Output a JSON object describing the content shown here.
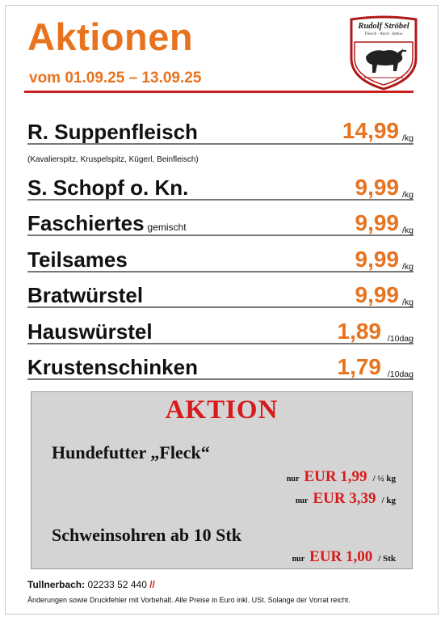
{
  "header": {
    "title": "Aktionen",
    "date_range": "vom 01.09.25 – 13.09.25",
    "logo_text": "Rudolf Ströbel",
    "logo_subtext": "Fleisch · Wurst · Imbiss",
    "accent_color": "#e8731f",
    "rule_color": "#cc1f1f"
  },
  "items": [
    {
      "name": "R. Suppenfleisch",
      "suffix": "",
      "price": "14,99",
      "unit": "/kg",
      "note": "(Kavalierspitz, Kruspelspitz, Kügerl, Beinfleisch)"
    },
    {
      "name": "S. Schopf o. Kn.",
      "suffix": "",
      "price": "9,99",
      "unit": "/kg",
      "note": ""
    },
    {
      "name": "Faschiertes",
      "suffix": "gemischt",
      "price": "9,99",
      "unit": "/kg",
      "note": ""
    },
    {
      "name": "Teilsames",
      "suffix": "",
      "price": "9,99",
      "unit": "/kg",
      "note": ""
    },
    {
      "name": "Bratwürstel",
      "suffix": "",
      "price": "9,99",
      "unit": "/kg",
      "note": ""
    },
    {
      "name": "Hauswürstel",
      "suffix": "",
      "price": "1,89",
      "unit": "/10dag",
      "note": ""
    },
    {
      "name": "Krustenschinken",
      "suffix": "",
      "price": "1,79",
      "unit": "/10dag",
      "note": ""
    }
  ],
  "promo": {
    "title": "AKTION",
    "title_color": "#d81a1a",
    "products": [
      {
        "heading": "Hundefutter „Fleck“",
        "prices": [
          {
            "prefix": "nur",
            "amount": "EUR 1,99",
            "unit": "/ ½ kg"
          },
          {
            "prefix": "nur",
            "amount": "EUR 3,39",
            "unit": "/ kg"
          }
        ]
      },
      {
        "heading": "Schweinsohren ab 10 Stk",
        "prices": [
          {
            "prefix": "nur",
            "amount": "EUR 1,00",
            "unit": "/ Stk"
          }
        ]
      }
    ]
  },
  "footer": {
    "location": "Tullnerbach:",
    "phone": "02233 52 440",
    "slashes": "//",
    "disclaimer": "Änderungen sowie Druckfehler mit Vorbehalt. Alle Preise in Euro inkl. USt. Solange der Vorrat reicht."
  }
}
